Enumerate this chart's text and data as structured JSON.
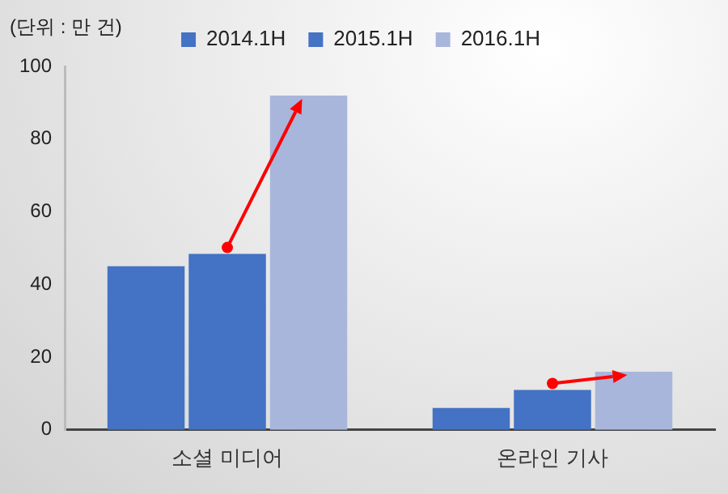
{
  "chart_data": {
    "type": "bar",
    "ylabel": "(단위 : 만 건)",
    "categories": [
      "소셜 미디어",
      "온라인 기사"
    ],
    "series": [
      {
        "name": "2014.1H",
        "color": "#4472c4",
        "values": [
          45,
          6
        ]
      },
      {
        "name": "2015.1H",
        "color": "#4472c4",
        "values": [
          48.4,
          11
        ]
      },
      {
        "name": "2016.1H",
        "color": "#a9b6dc",
        "values": [
          92,
          16
        ]
      }
    ],
    "ylim": [
      0,
      100
    ],
    "yticks": [
      0,
      20,
      40,
      60,
      80,
      100
    ],
    "grid": false,
    "legend": "top"
  }
}
